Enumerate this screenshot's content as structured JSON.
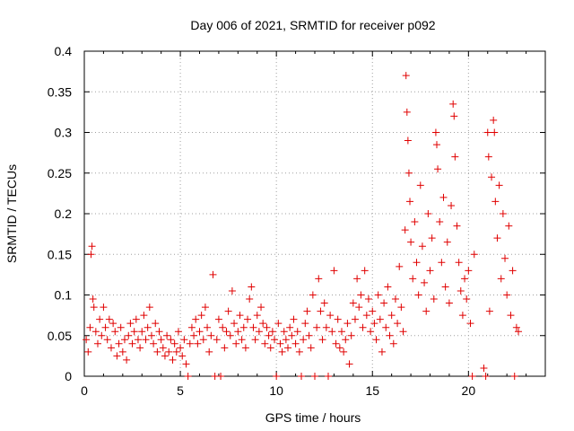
{
  "chart_data": {
    "type": "scatter",
    "title": "Day 006 of 2021, SRMTID for receiver p092",
    "xlabel": "GPS time / hours",
    "ylabel": "SRMTID / TECUs",
    "xlim": [
      0,
      24
    ],
    "ylim": [
      0,
      0.4
    ],
    "x_ticks": [
      0,
      5,
      10,
      15,
      20
    ],
    "x_tick_labels": [
      "0",
      "5",
      "10",
      "15",
      "20"
    ],
    "y_ticks": [
      0,
      0.05,
      0.1,
      0.15,
      0.2,
      0.25,
      0.3,
      0.35,
      0.4
    ],
    "y_tick_labels": [
      "0",
      "0.05",
      "0.1",
      "0.15",
      "0.2",
      "0.25",
      "0.3",
      "0.35",
      "0.4"
    ],
    "grid": true,
    "marker": "+",
    "color": "#e00000",
    "series": [
      {
        "name": "SRMTID",
        "points": [
          [
            0.1,
            0.045
          ],
          [
            0.2,
            0.03
          ],
          [
            0.3,
            0.06
          ],
          [
            0.35,
            0.15
          ],
          [
            0.4,
            0.16
          ],
          [
            0.45,
            0.095
          ],
          [
            0.5,
            0.085
          ],
          [
            0.6,
            0.055
          ],
          [
            0.7,
            0.04
          ],
          [
            0.8,
            0.07
          ],
          [
            0.9,
            0.05
          ],
          [
            1.0,
            0.085
          ],
          [
            1.1,
            0.06
          ],
          [
            1.2,
            0.045
          ],
          [
            1.3,
            0.07
          ],
          [
            1.4,
            0.035
          ],
          [
            1.5,
            0.065
          ],
          [
            1.6,
            0.055
          ],
          [
            1.7,
            0.025
          ],
          [
            1.8,
            0.04
          ],
          [
            1.9,
            0.06
          ],
          [
            2.0,
            0.03
          ],
          [
            2.1,
            0.045
          ],
          [
            2.2,
            0.02
          ],
          [
            2.3,
            0.05
          ],
          [
            2.4,
            0.065
          ],
          [
            2.5,
            0.04
          ],
          [
            2.6,
            0.055
          ],
          [
            2.7,
            0.07
          ],
          [
            2.8,
            0.045
          ],
          [
            2.9,
            0.035
          ],
          [
            3.0,
            0.055
          ],
          [
            3.1,
            0.075
          ],
          [
            3.2,
            0.045
          ],
          [
            3.3,
            0.06
          ],
          [
            3.4,
            0.085
          ],
          [
            3.5,
            0.05
          ],
          [
            3.6,
            0.04
          ],
          [
            3.7,
            0.065
          ],
          [
            3.8,
            0.03
          ],
          [
            3.9,
            0.055
          ],
          [
            4.0,
            0.045
          ],
          [
            4.1,
            0.035
          ],
          [
            4.2,
            0.025
          ],
          [
            4.3,
            0.05
          ],
          [
            4.4,
            0.03
          ],
          [
            4.5,
            0.045
          ],
          [
            4.6,
            0.02
          ],
          [
            4.7,
            0.04
          ],
          [
            4.8,
            0.03
          ],
          [
            4.9,
            0.055
          ],
          [
            5.0,
            0.035
          ],
          [
            5.1,
            0.025
          ],
          [
            5.2,
            0.045
          ],
          [
            5.3,
            0.015
          ],
          [
            5.4,
            0.0
          ],
          [
            5.5,
            0.04
          ],
          [
            5.6,
            0.06
          ],
          [
            5.7,
            0.05
          ],
          [
            5.8,
            0.07
          ],
          [
            5.9,
            0.04
          ],
          [
            6.0,
            0.055
          ],
          [
            6.1,
            0.075
          ],
          [
            6.2,
            0.045
          ],
          [
            6.3,
            0.085
          ],
          [
            6.4,
            0.06
          ],
          [
            6.5,
            0.03
          ],
          [
            6.6,
            0.05
          ],
          [
            6.7,
            0.125
          ],
          [
            6.8,
            0.0
          ],
          [
            6.9,
            0.045
          ],
          [
            7.0,
            0.07
          ],
          [
            7.1,
            0.0
          ],
          [
            7.2,
            0.06
          ],
          [
            7.3,
            0.035
          ],
          [
            7.4,
            0.055
          ],
          [
            7.5,
            0.08
          ],
          [
            7.6,
            0.05
          ],
          [
            7.7,
            0.105
          ],
          [
            7.8,
            0.065
          ],
          [
            7.9,
            0.04
          ],
          [
            8.0,
            0.055
          ],
          [
            8.1,
            0.075
          ],
          [
            8.2,
            0.045
          ],
          [
            8.3,
            0.06
          ],
          [
            8.4,
            0.035
          ],
          [
            8.5,
            0.07
          ],
          [
            8.6,
            0.095
          ],
          [
            8.7,
            0.11
          ],
          [
            8.8,
            0.06
          ],
          [
            8.9,
            0.045
          ],
          [
            9.0,
            0.075
          ],
          [
            9.1,
            0.055
          ],
          [
            9.2,
            0.085
          ],
          [
            9.3,
            0.065
          ],
          [
            9.4,
            0.04
          ],
          [
            9.5,
            0.06
          ],
          [
            9.6,
            0.05
          ],
          [
            9.7,
            0.035
          ],
          [
            9.8,
            0.055
          ],
          [
            9.9,
            0.045
          ],
          [
            10.0,
            0.0
          ],
          [
            10.1,
            0.065
          ],
          [
            10.2,
            0.04
          ],
          [
            10.3,
            0.03
          ],
          [
            10.4,
            0.055
          ],
          [
            10.5,
            0.045
          ],
          [
            10.6,
            0.035
          ],
          [
            10.7,
            0.06
          ],
          [
            10.8,
            0.05
          ],
          [
            10.9,
            0.07
          ],
          [
            11.0,
            0.04
          ],
          [
            11.1,
            0.055
          ],
          [
            11.2,
            0.03
          ],
          [
            11.3,
            0.0
          ],
          [
            11.4,
            0.045
          ],
          [
            11.5,
            0.065
          ],
          [
            11.6,
            0.08
          ],
          [
            11.7,
            0.05
          ],
          [
            11.8,
            0.035
          ],
          [
            11.9,
            0.1
          ],
          [
            12.0,
            0.0
          ],
          [
            12.1,
            0.06
          ],
          [
            12.2,
            0.12
          ],
          [
            12.3,
            0.08
          ],
          [
            12.4,
            0.045
          ],
          [
            12.5,
            0.09
          ],
          [
            12.6,
            0.06
          ],
          [
            12.7,
            0.0
          ],
          [
            12.8,
            0.075
          ],
          [
            12.9,
            0.055
          ],
          [
            13.0,
            0.13
          ],
          [
            13.1,
            0.04
          ],
          [
            13.2,
            0.07
          ],
          [
            13.3,
            0.035
          ],
          [
            13.4,
            0.055
          ],
          [
            13.5,
            0.03
          ],
          [
            13.6,
            0.045
          ],
          [
            13.7,
            0.065
          ],
          [
            13.8,
            0.015
          ],
          [
            13.9,
            0.05
          ],
          [
            14.0,
            0.09
          ],
          [
            14.1,
            0.07
          ],
          [
            14.2,
            0.12
          ],
          [
            14.3,
            0.085
          ],
          [
            14.4,
            0.1
          ],
          [
            14.5,
            0.06
          ],
          [
            14.6,
            0.13
          ],
          [
            14.7,
            0.075
          ],
          [
            14.8,
            0.095
          ],
          [
            14.9,
            0.055
          ],
          [
            15.0,
            0.08
          ],
          [
            15.1,
            0.065
          ],
          [
            15.2,
            0.045
          ],
          [
            15.3,
            0.1
          ],
          [
            15.4,
            0.07
          ],
          [
            15.5,
            0.03
          ],
          [
            15.6,
            0.09
          ],
          [
            15.7,
            0.06
          ],
          [
            15.8,
            0.11
          ],
          [
            15.9,
            0.05
          ],
          [
            16.0,
            0.075
          ],
          [
            16.1,
            0.04
          ],
          [
            16.2,
            0.095
          ],
          [
            16.3,
            0.065
          ],
          [
            16.4,
            0.135
          ],
          [
            16.5,
            0.085
          ],
          [
            16.6,
            0.055
          ],
          [
            16.7,
            0.18
          ],
          [
            16.75,
            0.37
          ],
          [
            16.8,
            0.325
          ],
          [
            16.85,
            0.29
          ],
          [
            16.9,
            0.25
          ],
          [
            16.95,
            0.215
          ],
          [
            17.0,
            0.165
          ],
          [
            17.1,
            0.12
          ],
          [
            17.2,
            0.19
          ],
          [
            17.3,
            0.14
          ],
          [
            17.4,
            0.1
          ],
          [
            17.5,
            0.235
          ],
          [
            17.6,
            0.16
          ],
          [
            17.7,
            0.115
          ],
          [
            17.8,
            0.08
          ],
          [
            17.9,
            0.2
          ],
          [
            18.0,
            0.13
          ],
          [
            18.1,
            0.17
          ],
          [
            18.2,
            0.095
          ],
          [
            18.3,
            0.3
          ],
          [
            18.35,
            0.285
          ],
          [
            18.4,
            0.255
          ],
          [
            18.5,
            0.19
          ],
          [
            18.6,
            0.14
          ],
          [
            18.7,
            0.22
          ],
          [
            18.8,
            0.11
          ],
          [
            18.9,
            0.165
          ],
          [
            19.0,
            0.09
          ],
          [
            19.1,
            0.21
          ],
          [
            19.2,
            0.335
          ],
          [
            19.25,
            0.32
          ],
          [
            19.3,
            0.27
          ],
          [
            19.4,
            0.185
          ],
          [
            19.5,
            0.14
          ],
          [
            19.6,
            0.105
          ],
          [
            19.7,
            0.075
          ],
          [
            19.8,
            0.12
          ],
          [
            19.9,
            0.095
          ],
          [
            20.0,
            0.13
          ],
          [
            20.1,
            0.065
          ],
          [
            20.2,
            0.0
          ],
          [
            20.3,
            0.15
          ],
          [
            20.8,
            0.01
          ],
          [
            20.9,
            0.0
          ],
          [
            21.0,
            0.3
          ],
          [
            21.05,
            0.27
          ],
          [
            21.1,
            0.08
          ],
          [
            21.2,
            0.245
          ],
          [
            21.3,
            0.315
          ],
          [
            21.35,
            0.3
          ],
          [
            21.4,
            0.215
          ],
          [
            21.5,
            0.17
          ],
          [
            21.6,
            0.235
          ],
          [
            21.7,
            0.12
          ],
          [
            21.8,
            0.2
          ],
          [
            21.9,
            0.145
          ],
          [
            22.0,
            0.1
          ],
          [
            22.1,
            0.185
          ],
          [
            22.2,
            0.075
          ],
          [
            22.3,
            0.13
          ],
          [
            22.4,
            0.0
          ],
          [
            22.5,
            0.06
          ],
          [
            22.6,
            0.055
          ]
        ]
      }
    ]
  }
}
